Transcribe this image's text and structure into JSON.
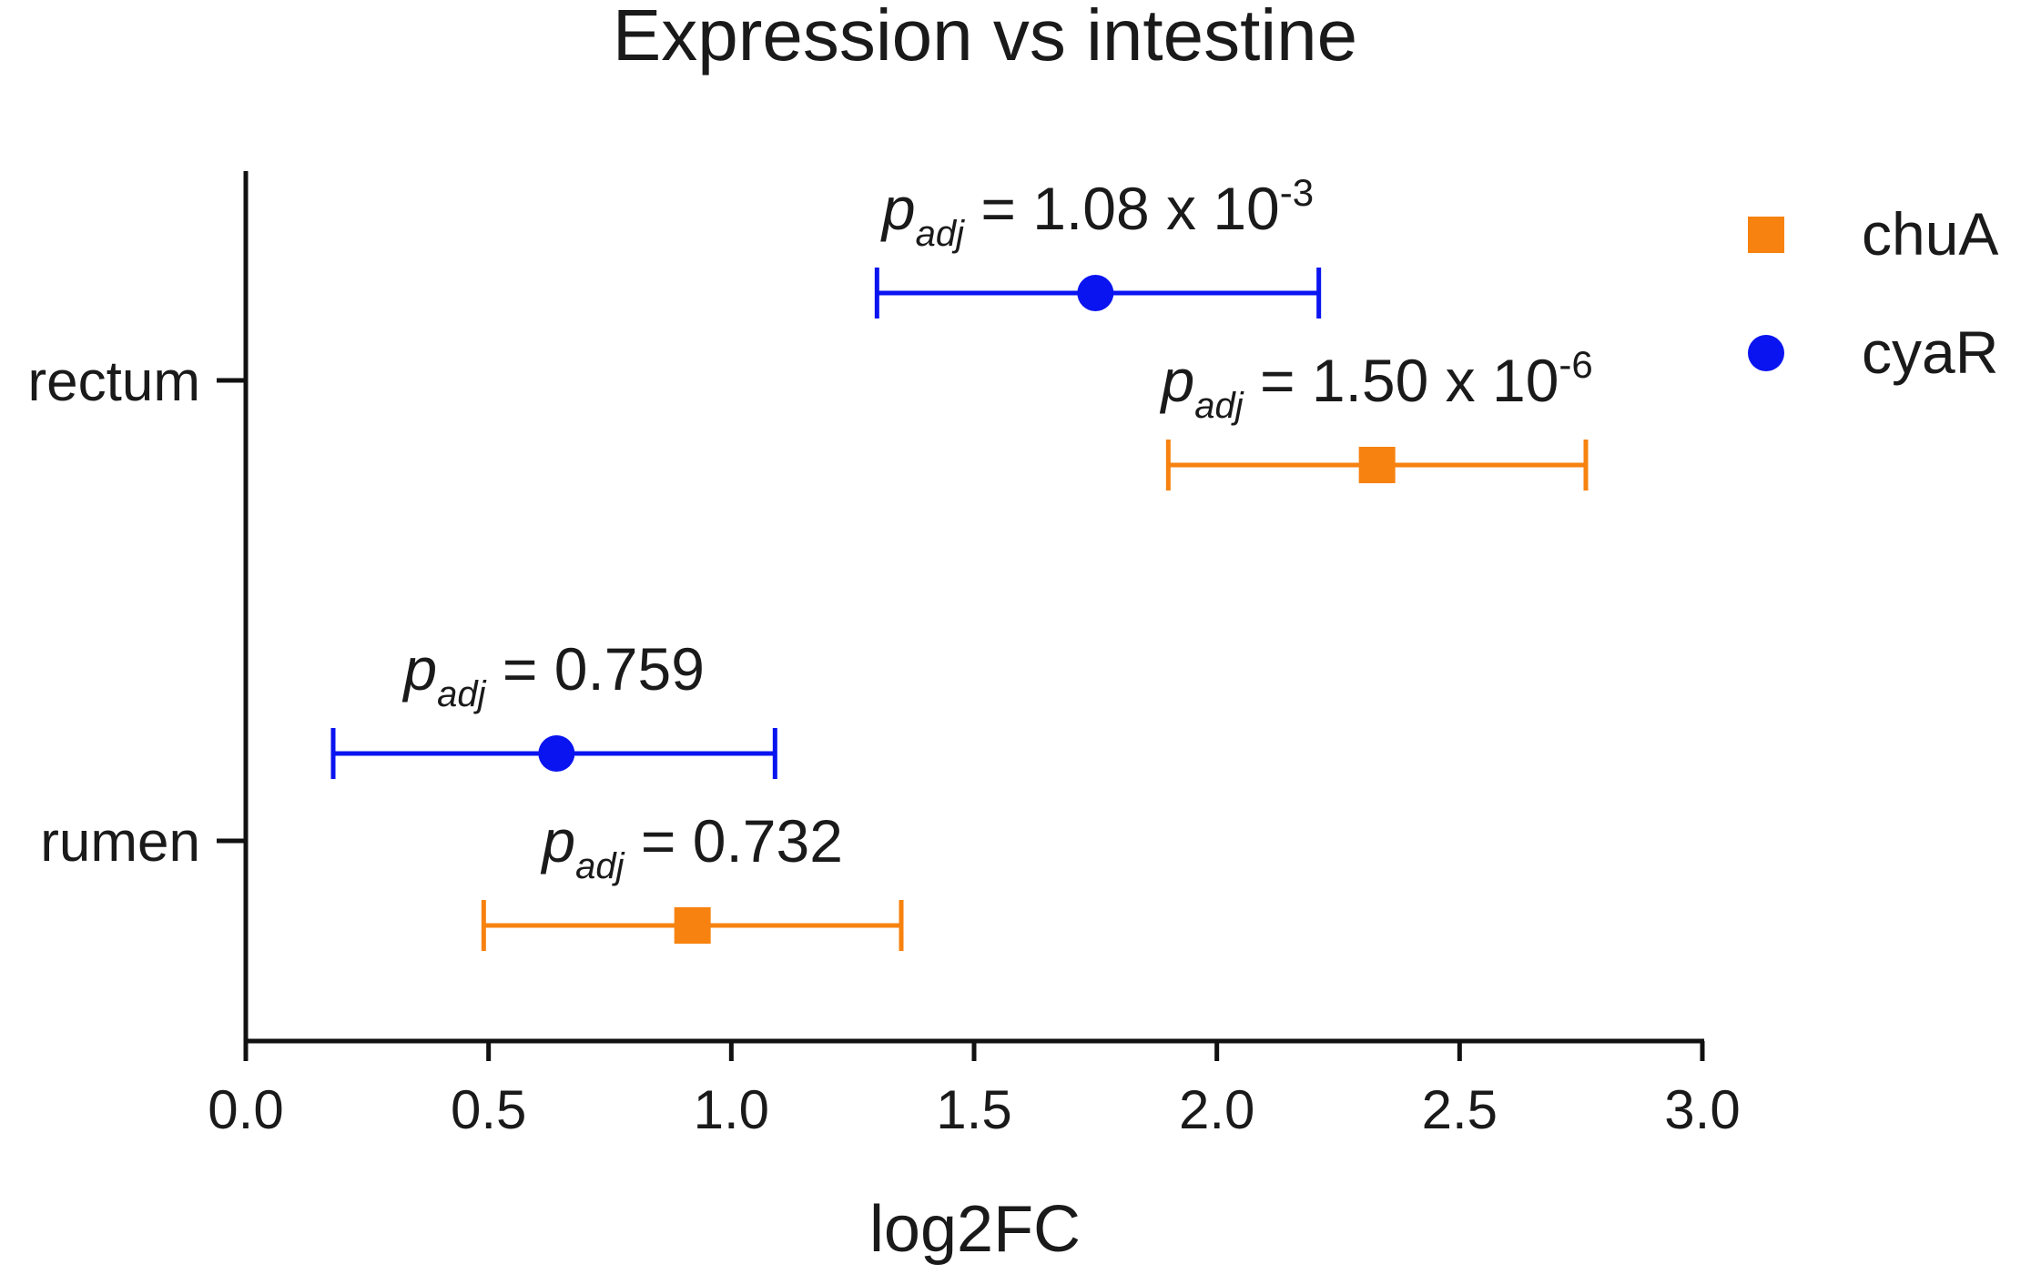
{
  "chart_data": {
    "type": "scatter",
    "orientation": "horizontal",
    "title": "Expression vs intestine",
    "xlabel": "log2FC",
    "ylabel": "",
    "xlim": [
      0,
      3
    ],
    "x_ticks": [
      "0.0",
      "0.5",
      "1.0",
      "1.5",
      "2.0",
      "2.5",
      "3.0"
    ],
    "y_categories": [
      "rectum",
      "rumen"
    ],
    "legend": {
      "position": "top-right"
    },
    "series": [
      {
        "name": "chuA",
        "color": "#f7820f",
        "marker": "square",
        "points": [
          {
            "category": "rectum",
            "value": 2.33,
            "ci_low": 1.9,
            "ci_high": 2.76,
            "p_prefix": "p",
            "p_sub": "adj",
            "p_text": " = 1.50 x 10",
            "p_exp": "-6"
          },
          {
            "category": "rumen",
            "value": 0.92,
            "ci_low": 0.49,
            "ci_high": 1.35,
            "p_prefix": "p",
            "p_sub": "adj",
            "p_text": " = 0.732",
            "p_exp": ""
          }
        ]
      },
      {
        "name": "cyaR",
        "color": "#0a14f0",
        "marker": "circle",
        "points": [
          {
            "category": "rectum",
            "value": 1.75,
            "ci_low": 1.3,
            "ci_high": 2.21,
            "p_prefix": "p",
            "p_sub": "adj",
            "p_text": " = 1.08 x 10",
            "p_exp": "-3"
          },
          {
            "category": "rumen",
            "value": 0.64,
            "ci_low": 0.18,
            "ci_high": 1.09,
            "p_prefix": "p",
            "p_sub": "adj",
            "p_text": " = 0.759",
            "p_exp": ""
          }
        ]
      }
    ]
  }
}
